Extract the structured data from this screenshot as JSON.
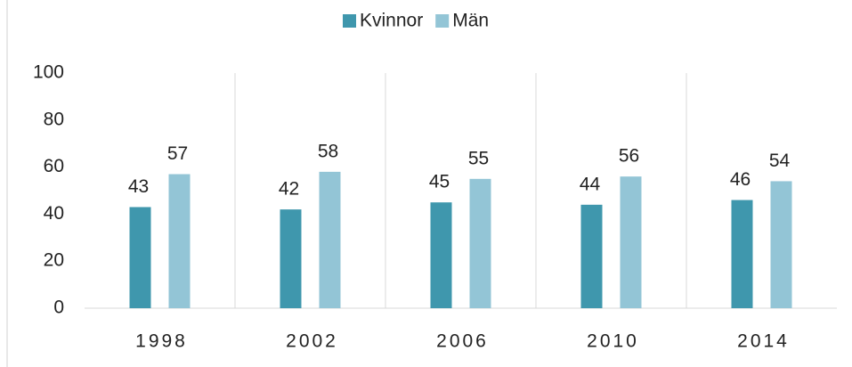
{
  "chart_data": {
    "type": "bar",
    "categories": [
      "1998",
      "2002",
      "2006",
      "2010",
      "2014"
    ],
    "series": [
      {
        "name": "Kvinnor",
        "color": "#3f97ad",
        "values": [
          43,
          42,
          45,
          44,
          46
        ]
      },
      {
        "name": "Män",
        "color": "#93c5d6",
        "values": [
          57,
          58,
          55,
          56,
          54
        ]
      }
    ],
    "ylim": [
      0,
      100
    ],
    "yticks": [
      0,
      20,
      40,
      60,
      80,
      100
    ],
    "grid": true,
    "legend": "top"
  }
}
